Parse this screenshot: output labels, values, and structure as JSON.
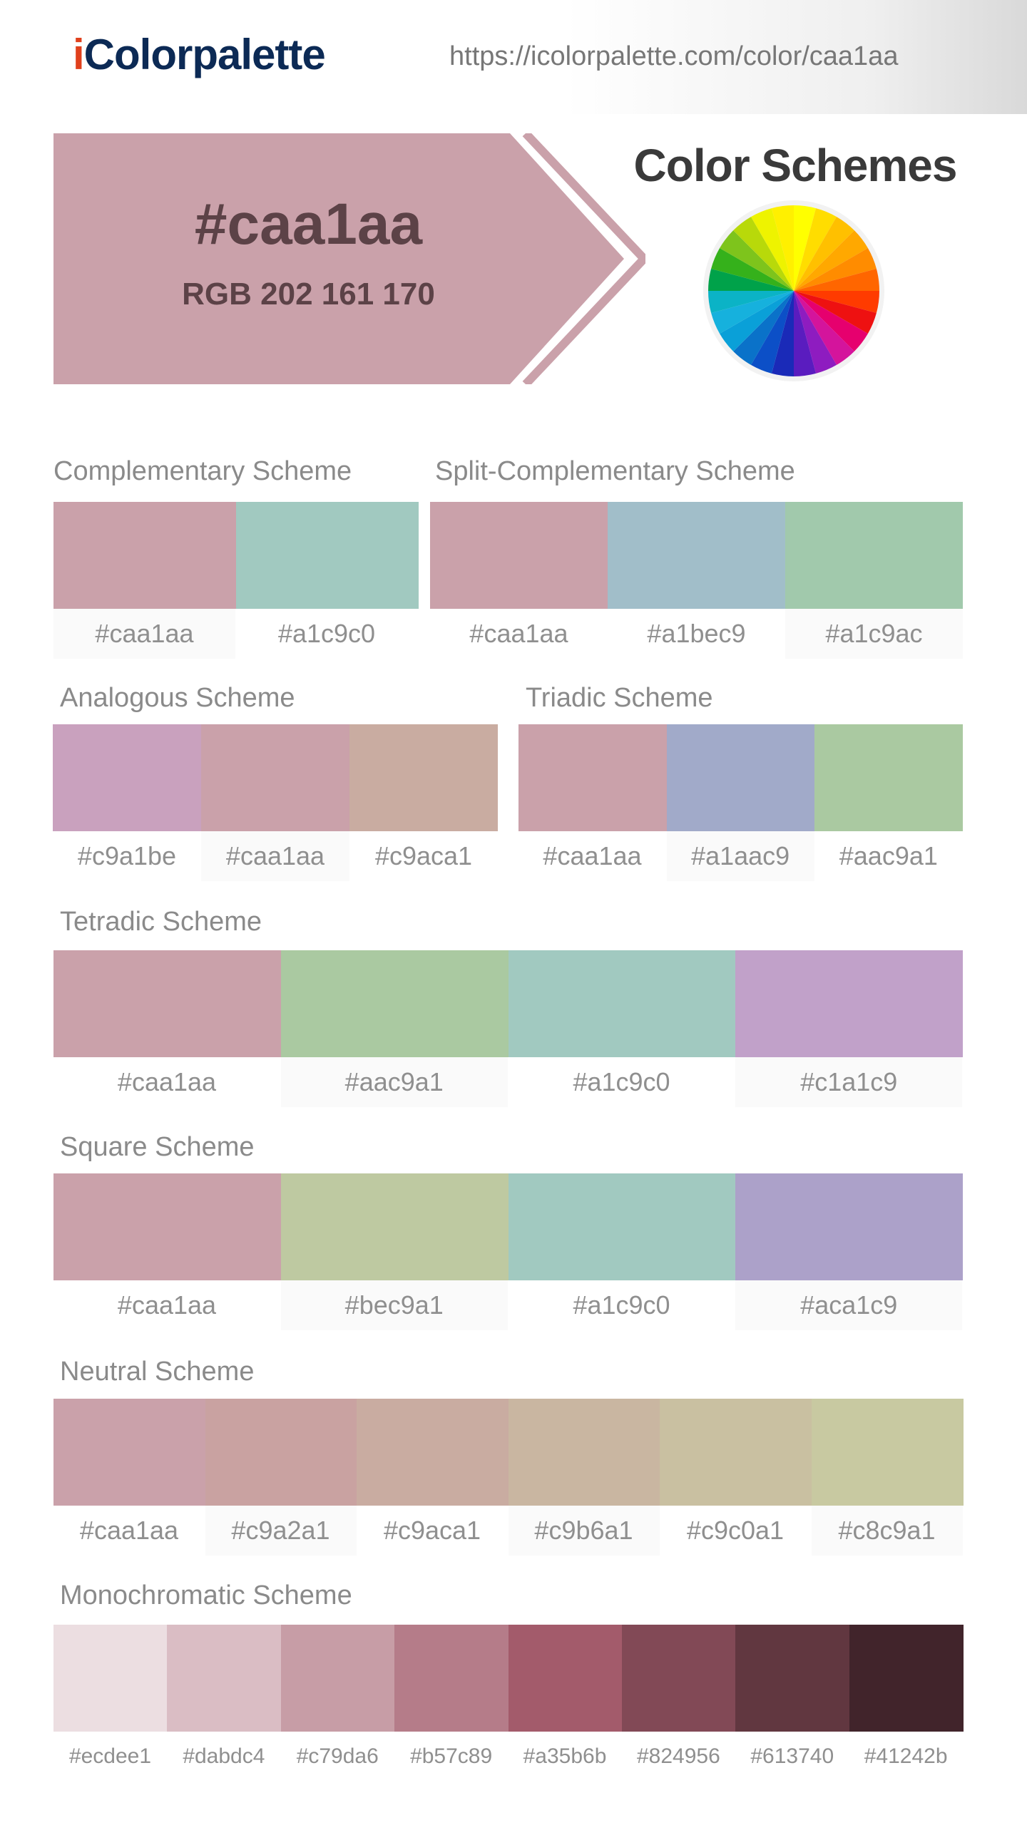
{
  "header": {
    "logo_prefix": "i",
    "logo_rest": "Colorpalette",
    "url": "https://icolorpalette.com/color/caa1aa"
  },
  "hero": {
    "hex": "#caa1aa",
    "rgb": "RGB 202 161 170",
    "color": "#caa1aa"
  },
  "schemes_title": "Color Schemes",
  "wheel_colors": [
    "#ffff00",
    "#ffdd00",
    "#ffc000",
    "#ffa800",
    "#ff8c00",
    "#ff6600",
    "#ff3b00",
    "#ee1111",
    "#e6006e",
    "#d4149c",
    "#8e1cc0",
    "#5a1cbf",
    "#1a2ab8",
    "#0c4fc7",
    "#0a72c9",
    "#0aa0d8",
    "#16b1dd",
    "#0bb3c6",
    "#00a24a",
    "#35b11b",
    "#7ec41c",
    "#b8d90a",
    "#eef300",
    "#fff000"
  ],
  "complementary": {
    "title": "Complementary Scheme",
    "colors": [
      "#caa1aa",
      "#a1c9c0"
    ]
  },
  "split": {
    "title": "Split-Complementary Scheme",
    "colors": [
      "#caa1aa",
      "#a1bec9",
      "#a1c9ac"
    ]
  },
  "analogous": {
    "title": "Analogous Scheme",
    "colors": [
      "#c9a1be",
      "#caa1aa",
      "#c9aca1"
    ]
  },
  "triadic": {
    "title": "Triadic Scheme",
    "colors": [
      "#caa1aa",
      "#a1aac9",
      "#aac9a1"
    ]
  },
  "tetradic": {
    "title": "Tetradic Scheme",
    "colors": [
      "#caa1aa",
      "#aac9a1",
      "#a1c9c0",
      "#c1a1c9"
    ]
  },
  "square": {
    "title": "Square Scheme",
    "colors": [
      "#caa1aa",
      "#bec9a1",
      "#a1c9c0",
      "#aca1c9"
    ]
  },
  "neutral": {
    "title": "Neutral Scheme",
    "colors": [
      "#caa1aa",
      "#c9a2a1",
      "#c9aca1",
      "#c9b6a1",
      "#c9c0a1",
      "#c8c9a1"
    ]
  },
  "monochromatic": {
    "title": "Monochromatic Scheme",
    "colors": [
      "#ecdee1",
      "#dabdc4",
      "#c79da6",
      "#b57c89",
      "#a35b6b",
      "#824956",
      "#613740",
      "#41242b"
    ]
  }
}
